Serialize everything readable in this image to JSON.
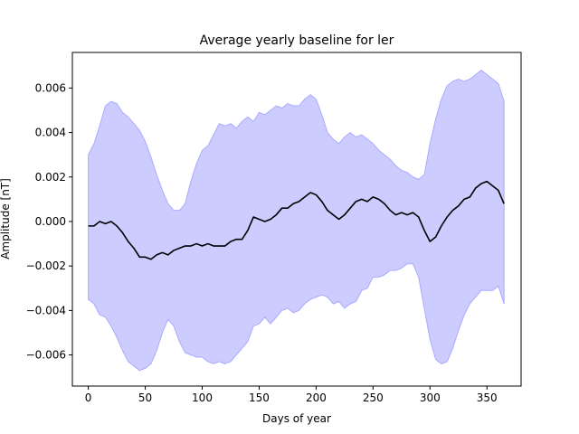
{
  "chart_data": {
    "type": "area",
    "title": "Average yearly baseline for ler",
    "xlabel": "Days of year",
    "ylabel": "Amplitude [nT]",
    "xlim": [
      -14,
      380
    ],
    "ylim": [
      -0.0074,
      0.0076
    ],
    "xticks": [
      0,
      50,
      100,
      150,
      200,
      250,
      300,
      350
    ],
    "xtick_labels": [
      "0",
      "50",
      "100",
      "150",
      "200",
      "250",
      "300",
      "350"
    ],
    "yticks": [
      -0.006,
      -0.004,
      -0.002,
      0.0,
      0.002,
      0.004,
      0.006
    ],
    "ytick_labels": [
      "−0.006",
      "−0.004",
      "−0.002",
      "0.000",
      "0.002",
      "0.004",
      "0.006"
    ],
    "grid": false,
    "colors": {
      "mean_line": "#000000",
      "band_fill": "#ccccff",
      "band_edge": "#aaaaff"
    },
    "series": [
      {
        "x": [
          0,
          5,
          10,
          15,
          20,
          25,
          30,
          35,
          40,
          45,
          50,
          55,
          60,
          65,
          70,
          75,
          80,
          85,
          90,
          95,
          100,
          105,
          110,
          115,
          120,
          125,
          130,
          135,
          140,
          145,
          150,
          155,
          160,
          165,
          170,
          175,
          180,
          185,
          190,
          195,
          200,
          205,
          210,
          215,
          220,
          225,
          230,
          235,
          240,
          245,
          250,
          255,
          260,
          265,
          270,
          275,
          280,
          285,
          290,
          295,
          300,
          305,
          310,
          315,
          320,
          325,
          330,
          335,
          340,
          345,
          350,
          355,
          360,
          365
        ],
        "mean": [
          -0.0002,
          -0.0002,
          0.0,
          -0.0001,
          0.0,
          -0.0002,
          -0.0005,
          -0.0009,
          -0.0012,
          -0.0016,
          -0.0016,
          -0.0017,
          -0.0015,
          -0.0014,
          -0.0015,
          -0.0013,
          -0.0012,
          -0.0011,
          -0.0011,
          -0.001,
          -0.0011,
          -0.001,
          -0.0011,
          -0.0011,
          -0.0011,
          -0.0009,
          -0.0008,
          -0.0008,
          -0.0004,
          0.0002,
          0.0001,
          0.0,
          0.0001,
          0.0003,
          0.0006,
          0.0006,
          0.0008,
          0.0009,
          0.0011,
          0.0013,
          0.0012,
          0.0009,
          0.0005,
          0.0003,
          0.0001,
          0.0003,
          0.0006,
          0.0009,
          0.001,
          0.0009,
          0.0011,
          0.001,
          0.0008,
          0.0005,
          0.0003,
          0.0004,
          0.0003,
          0.0004,
          0.0002,
          -0.0004,
          -0.0009,
          -0.0007,
          -0.0002,
          0.0002,
          0.0005,
          0.0007,
          0.001,
          0.0011,
          0.0015,
          0.0017,
          0.0018,
          0.0016,
          0.0014,
          0.0008
        ],
        "upper": [
          0.003,
          0.0035,
          0.0043,
          0.0052,
          0.0054,
          0.0053,
          0.0049,
          0.0047,
          0.0044,
          0.0041,
          0.0036,
          0.0029,
          0.0021,
          0.0014,
          0.0008,
          0.0005,
          0.0005,
          0.0008,
          0.0018,
          0.0026,
          0.0032,
          0.0034,
          0.0039,
          0.0044,
          0.0043,
          0.0044,
          0.0042,
          0.0045,
          0.0047,
          0.0045,
          0.0049,
          0.0048,
          0.005,
          0.0052,
          0.0051,
          0.0053,
          0.0052,
          0.0052,
          0.0055,
          0.0057,
          0.0055,
          0.0048,
          0.004,
          0.0037,
          0.0035,
          0.0038,
          0.004,
          0.0038,
          0.0039,
          0.0037,
          0.0035,
          0.0032,
          0.003,
          0.0028,
          0.0025,
          0.0023,
          0.0022,
          0.002,
          0.0019,
          0.0021,
          0.0035,
          0.0046,
          0.0055,
          0.0061,
          0.0063,
          0.0064,
          0.0063,
          0.0064,
          0.0066,
          0.0068,
          0.0066,
          0.0064,
          0.0062,
          0.0054
        ],
        "lower": [
          -0.0035,
          -0.0037,
          -0.0042,
          -0.0043,
          -0.0047,
          -0.0052,
          -0.0058,
          -0.0063,
          -0.0065,
          -0.0067,
          -0.0066,
          -0.0064,
          -0.0058,
          -0.005,
          -0.0044,
          -0.0047,
          -0.0054,
          -0.0059,
          -0.006,
          -0.0061,
          -0.0061,
          -0.0063,
          -0.0064,
          -0.0063,
          -0.0064,
          -0.0063,
          -0.006,
          -0.0057,
          -0.0054,
          -0.0047,
          -0.0046,
          -0.0043,
          -0.0046,
          -0.0043,
          -0.004,
          -0.0039,
          -0.0041,
          -0.004,
          -0.0037,
          -0.0035,
          -0.0034,
          -0.0033,
          -0.0034,
          -0.0037,
          -0.0036,
          -0.0039,
          -0.0037,
          -0.0036,
          -0.0031,
          -0.003,
          -0.0025,
          -0.0025,
          -0.0024,
          -0.0022,
          -0.0022,
          -0.0021,
          -0.0019,
          -0.0019,
          -0.0025,
          -0.0039,
          -0.0053,
          -0.0062,
          -0.0064,
          -0.0063,
          -0.0057,
          -0.0049,
          -0.0042,
          -0.0037,
          -0.0034,
          -0.0031,
          -0.0031,
          -0.0031,
          -0.0029,
          -0.0037
        ]
      }
    ]
  }
}
